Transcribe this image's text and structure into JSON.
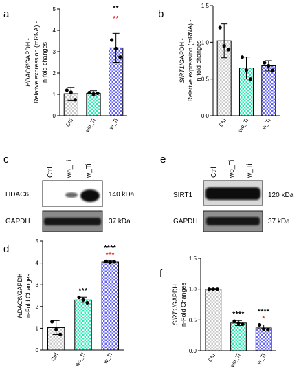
{
  "chart_data": [
    {
      "panel": "a",
      "type": "bar",
      "ylabel_gene": "HDAC6",
      "ylabel_rest": "/GAPDH -",
      "ylabel_line2": "Relative expression (mRNA) -",
      "ylabel_line3": "n-fold changes",
      "ylim": [
        0,
        5
      ],
      "yticks": [
        "0",
        "1",
        "2",
        "3",
        "4",
        "5"
      ],
      "categories": [
        "Ctrl",
        "wo_Ti",
        "w_Ti"
      ],
      "values": [
        1.03,
        1.05,
        3.18
      ],
      "errors": [
        0.3,
        0.12,
        0.68
      ],
      "points": [
        [
          1.2,
          1.1,
          0.75
        ],
        [
          1.08,
          1.02,
          1.05
        ],
        [
          3.55,
          3.15,
          2.75
        ]
      ],
      "significance": [
        {
          "bar": 2,
          "text": "**",
          "color": "#000000"
        },
        {
          "bar": 2,
          "text": "**",
          "color": "#e8302a"
        }
      ]
    },
    {
      "panel": "b",
      "type": "bar",
      "ylabel_gene": "SIRT1",
      "ylabel_rest": "/GAPDH -",
      "ylabel_line2": "Relative expression (mRNA) -",
      "ylabel_line3": "n-fold changes",
      "ylim": [
        0,
        1.5
      ],
      "yticks": [
        "0.0",
        "0.5",
        "1.0",
        "1.5"
      ],
      "categories": [
        "Ctrl",
        "wo_Ti",
        "w_Ti"
      ],
      "values": [
        1.02,
        0.65,
        0.68
      ],
      "errors": [
        0.23,
        0.15,
        0.07
      ],
      "points": [
        [
          1.2,
          0.95,
          0.9
        ],
        [
          0.8,
          0.62,
          0.5
        ],
        [
          0.72,
          0.68,
          0.62
        ]
      ],
      "significance": []
    },
    {
      "panel": "d",
      "type": "bar",
      "ylabel_gene": "HDAC6",
      "ylabel_rest": "/GAPDH",
      "ylabel_line2": "n-Fold Changes",
      "ylabel_line3": "",
      "ylim": [
        0,
        5
      ],
      "yticks": [
        "0",
        "1",
        "2",
        "3",
        "4",
        "5"
      ],
      "categories": [
        "Ctrl",
        "wo_Ti",
        "w_Ti"
      ],
      "values": [
        1.03,
        2.3,
        4.05
      ],
      "errors": [
        0.32,
        0.13,
        0.04
      ],
      "points": [
        [
          1.3,
          0.95,
          0.72
        ],
        [
          2.42,
          2.3,
          2.17
        ],
        [
          4.07,
          4.03,
          4.05
        ]
      ],
      "significance": [
        {
          "bar": 1,
          "text": "***",
          "color": "#000000"
        },
        {
          "bar": 2,
          "text": "****",
          "color": "#000000"
        },
        {
          "bar": 2,
          "text": "***",
          "color": "#e8302a"
        }
      ]
    },
    {
      "panel": "f",
      "type": "bar",
      "ylabel_gene": "SIRT1",
      "ylabel_rest": "/GAPDH",
      "ylabel_line2": "n-Fold Changes",
      "ylabel_line3": "",
      "ylim": [
        0,
        1.5
      ],
      "yticks": [
        "0.0",
        "0.5",
        "1.0",
        "1.5"
      ],
      "categories": [
        "Ctrl",
        "wo_Ti",
        "w_Ti"
      ],
      "values": [
        1.0,
        0.45,
        0.37
      ],
      "errors": [
        0.01,
        0.04,
        0.05
      ],
      "points": [
        [
          1.0,
          1.0,
          1.0
        ],
        [
          0.48,
          0.45,
          0.43
        ],
        [
          0.42,
          0.35,
          0.34
        ]
      ],
      "significance": [
        {
          "bar": 1,
          "text": "****",
          "color": "#000000"
        },
        {
          "bar": 2,
          "text": "****",
          "color": "#000000"
        },
        {
          "bar": 2,
          "text": "*",
          "color": "#e8302a"
        }
      ]
    }
  ],
  "colors": {
    "ctrl_pattern": "#c8c8c8",
    "wo_ti_pattern": "#2ee8b6",
    "w_ti_pattern": "#6464f0",
    "significance_red": "#e8302a"
  },
  "blots": {
    "c": {
      "panel": "c",
      "lanes": [
        "Ctrl",
        "wo_Ti",
        "w_Ti"
      ],
      "rows": [
        {
          "label": "HDAC6",
          "size": "140 kDa"
        },
        {
          "label": "GAPDH",
          "size": "37 kDa"
        }
      ]
    },
    "e": {
      "panel": "e",
      "lanes": [
        "Ctrl",
        "wo_Ti",
        "w_Ti"
      ],
      "rows": [
        {
          "label": "SIRT1",
          "size": "120 kDa"
        },
        {
          "label": "GAPDH",
          "size": "37 kDa"
        }
      ]
    }
  }
}
